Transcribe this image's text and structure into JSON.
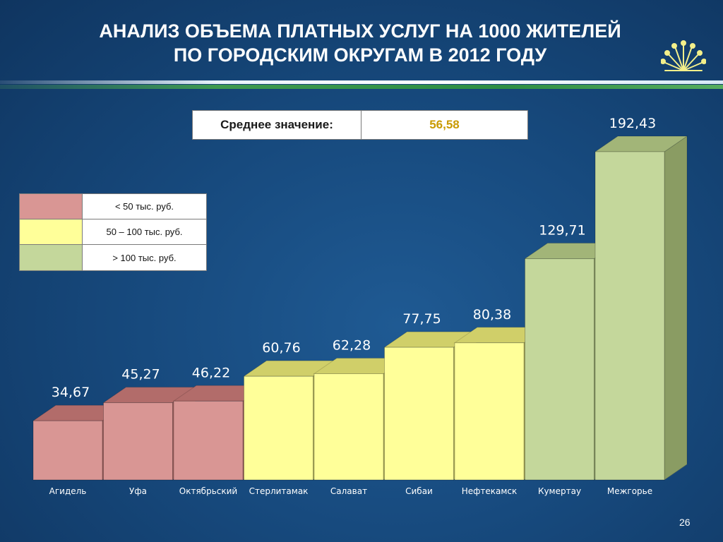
{
  "slide": {
    "title_line1": "АНАЛИЗ ОБЪЕМА ПЛАТНЫХ УСЛУГ НА 1000 ЖИТЕЛЕЙ",
    "title_line2": "ПО ГОРОДСКИМ ОКРУГАМ В 2012 ГОДУ",
    "page_number": "26",
    "logo_icon": "kurai-flower-icon"
  },
  "average": {
    "label": "Среднее значение:",
    "value": "56,58"
  },
  "legend": [
    {
      "label": "< 50 тыс. руб.",
      "color": "#d99694"
    },
    {
      "label": "50 – 100 тыс. руб.",
      "color": "#ffff99"
    },
    {
      "label": "> 100 тыс. руб.",
      "color": "#c4d79b"
    }
  ],
  "chart_data": {
    "type": "bar",
    "categories": [
      "Агидель",
      "Уфа",
      "Октябрьский",
      "Стерлитамак",
      "Салават",
      "Сибаи",
      "Нефтекамск",
      "Кумертау",
      "Межгорье"
    ],
    "values": [
      34.67,
      45.27,
      46.22,
      60.76,
      62.28,
      77.75,
      80.38,
      129.71,
      192.43
    ],
    "value_labels": [
      "34,67",
      "45,27",
      "46,22",
      "60,76",
      "62,28",
      "77,75",
      "80,38",
      "129,71",
      "192,43"
    ],
    "color_groups": [
      "low",
      "low",
      "low",
      "mid",
      "mid",
      "mid",
      "mid",
      "high",
      "high"
    ],
    "colors": {
      "low": {
        "front": "#d99694",
        "top": "#b26c6a",
        "side": "#9e5e5c"
      },
      "mid": {
        "front": "#ffff99",
        "top": "#d0cf69",
        "side": "#b3b35a"
      },
      "high": {
        "front": "#c4d79b",
        "top": "#a2b578",
        "side": "#8a9c63"
      }
    },
    "title": "",
    "xlabel": "",
    "ylabel": "",
    "ylim": [
      0,
      200
    ],
    "grid": false,
    "legend_position": "left"
  }
}
